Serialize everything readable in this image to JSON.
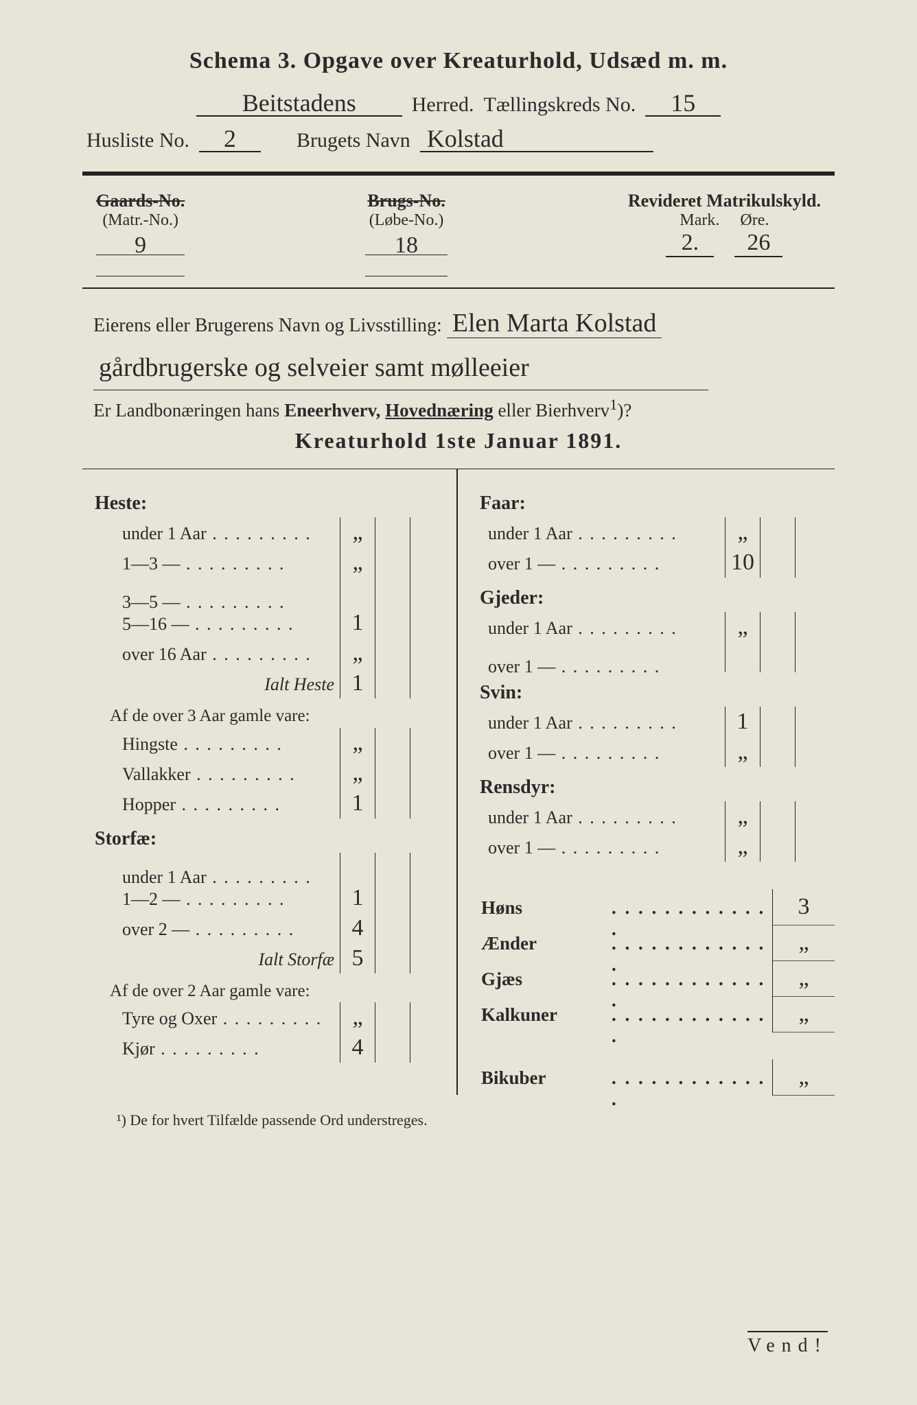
{
  "title": "Schema 3.  Opgave over Kreaturhold, Udsæd m. m.",
  "header": {
    "herred_hand": "Beitstadens",
    "herred_label": "Herred.",
    "kreds_label": "Tællingskreds No.",
    "kreds_no": "15",
    "husliste_label": "Husliste No.",
    "husliste_no": "2",
    "brugets_label": "Brugets Navn",
    "brugets_navn": "Kolstad"
  },
  "matrikul": {
    "gaards_strike": "Gaards-No.",
    "matr_paren": "(Matr.-No.)",
    "matr_no": "9",
    "brugs_strike": "Brugs-No.",
    "lobe_paren": "(Løbe-No.)",
    "lobe_no": "18",
    "revideret_label": "Revideret Matrikulskyld.",
    "mark_label": "Mark.",
    "ore_label": "Øre.",
    "mark_val": "2.",
    "ore_val": "26"
  },
  "owner": {
    "label": "Eierens eller Brugerens Navn og Livsstilling:",
    "hand1": "Elen Marta Kolstad",
    "hand2": "gårdbrugerske og selveier samt mølleeier"
  },
  "question": {
    "pre": "Er Landbonæringen hans",
    "a": "Eneerhverv,",
    "b": "Hovednæring",
    "c": "eller Bierhverv",
    "sup": "1",
    "q": ")?"
  },
  "section_title": "Kreaturhold 1ste Januar 1891.",
  "left": {
    "heste": {
      "head": "Heste:",
      "rows": [
        {
          "label": "under 1 Aar",
          "val": "„"
        },
        {
          "label": "1—3  —",
          "val": "„"
        },
        {
          "label": "3—5  —",
          "val": ""
        },
        {
          "label": "5—16  —",
          "val": "1"
        },
        {
          "label": "over 16 Aar",
          "val": "„"
        }
      ],
      "total_label": "Ialt Heste",
      "total_val": "1",
      "sub": "Af de over 3 Aar gamle vare:",
      "subrows": [
        {
          "label": "Hingste",
          "val": "„"
        },
        {
          "label": "Vallakker",
          "val": "„"
        },
        {
          "label": "Hopper",
          "val": "1"
        }
      ]
    },
    "storfae": {
      "head": "Storfæ:",
      "rows": [
        {
          "label": "under 1 Aar",
          "val": ""
        },
        {
          "label": "1—2  —",
          "val": "1"
        },
        {
          "label": "over 2  —",
          "val": "4"
        }
      ],
      "total_label": "Ialt Storfæ",
      "total_val": "5",
      "sub": "Af de over 2 Aar gamle vare:",
      "subrows": [
        {
          "label": "Tyre og Oxer",
          "val": "„"
        },
        {
          "label": "Kjør",
          "val": "4"
        }
      ]
    }
  },
  "right": {
    "faar": {
      "head": "Faar:",
      "rows": [
        {
          "label": "under 1 Aar",
          "val": "„"
        },
        {
          "label": "over 1  —",
          "val": "10"
        }
      ]
    },
    "gjeder": {
      "head": "Gjeder:",
      "rows": [
        {
          "label": "under 1 Aar",
          "val": "„"
        },
        {
          "label": "over 1  —",
          "val": ""
        }
      ]
    },
    "svin": {
      "head": "Svin:",
      "rows": [
        {
          "label": "under 1 Aar",
          "val": "1"
        },
        {
          "label": "over 1  —",
          "val": "„"
        }
      ]
    },
    "rensdyr": {
      "head": "Rensdyr:",
      "rows": [
        {
          "label": "under 1 Aar",
          "val": "„"
        },
        {
          "label": "over 1  —",
          "val": "„"
        }
      ]
    },
    "extras": [
      {
        "label": "Høns",
        "val": "3"
      },
      {
        "label": "Ænder",
        "val": "„"
      },
      {
        "label": "Gjæs",
        "val": "„"
      },
      {
        "label": "Kalkuner",
        "val": "„"
      },
      {
        "label": "Bikuber",
        "val": "„"
      }
    ]
  },
  "footnote": "¹) De for hvert Tilfælde passende Ord understreges.",
  "vend": "Vend!"
}
